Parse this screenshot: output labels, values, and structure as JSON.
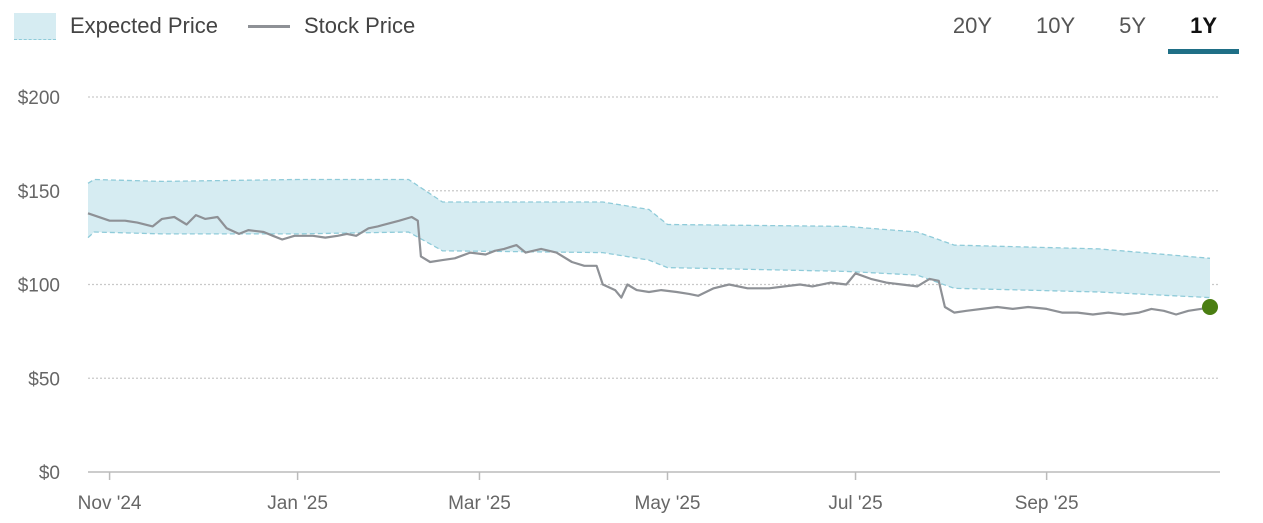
{
  "legend": {
    "expected_label": "Expected Price",
    "stock_label": "Stock Price"
  },
  "tabs": [
    {
      "label": "20Y",
      "active": false
    },
    {
      "label": "10Y",
      "active": false
    },
    {
      "label": "5Y",
      "active": false
    },
    {
      "label": "1Y",
      "active": true
    }
  ],
  "colors": {
    "band_fill": "#d6ecf2",
    "band_edge": "#8fcbd9",
    "stock_line": "#8e9196",
    "last_point": "#4a7e12",
    "active_tab": "#1f6f86"
  },
  "chart_data": {
    "type": "line",
    "y_ticks": [
      "$0",
      "$50",
      "$100",
      "$150",
      "$200"
    ],
    "ylim": [
      0,
      200
    ],
    "grid": true,
    "x_ticks": [
      {
        "label": "Nov '24",
        "date": "2024-11-01"
      },
      {
        "label": "Jan '25",
        "date": "2025-01-01"
      },
      {
        "label": "Mar '25",
        "date": "2025-03-01"
      },
      {
        "label": "May '25",
        "date": "2025-05-01"
      },
      {
        "label": "Jul '25",
        "date": "2025-07-01"
      },
      {
        "label": "Sep '25",
        "date": "2025-09-01"
      }
    ],
    "xlim": [
      "2024-10-25",
      "2025-10-24"
    ],
    "series": [
      {
        "name": "Stock Price",
        "points": [
          [
            "2024-10-25",
            138
          ],
          [
            "2024-11-01",
            134
          ],
          [
            "2024-11-06",
            134
          ],
          [
            "2024-11-10",
            133
          ],
          [
            "2024-11-15",
            131
          ],
          [
            "2024-11-18",
            135
          ],
          [
            "2024-11-22",
            136
          ],
          [
            "2024-11-26",
            132
          ],
          [
            "2024-11-29",
            137
          ],
          [
            "2024-12-02",
            135
          ],
          [
            "2024-12-06",
            136
          ],
          [
            "2024-12-09",
            130
          ],
          [
            "2024-12-13",
            127
          ],
          [
            "2024-12-16",
            129
          ],
          [
            "2024-12-21",
            128
          ],
          [
            "2024-12-24",
            126
          ],
          [
            "2024-12-27",
            124
          ],
          [
            "2024-12-31",
            126
          ],
          [
            "2025-01-06",
            126
          ],
          [
            "2025-01-10",
            125
          ],
          [
            "2025-01-14",
            126
          ],
          [
            "2025-01-17",
            127
          ],
          [
            "2025-01-20",
            126
          ],
          [
            "2025-01-24",
            130
          ],
          [
            "2025-01-27",
            131
          ],
          [
            "2025-02-03",
            134
          ],
          [
            "2025-02-07",
            136
          ],
          [
            "2025-02-09",
            134
          ],
          [
            "2025-02-10",
            115
          ],
          [
            "2025-02-13",
            112
          ],
          [
            "2025-02-17",
            113
          ],
          [
            "2025-02-21",
            114
          ],
          [
            "2025-02-26",
            117
          ],
          [
            "2025-03-03",
            116
          ],
          [
            "2025-03-06",
            118
          ],
          [
            "2025-03-09",
            119
          ],
          [
            "2025-03-13",
            121
          ],
          [
            "2025-03-16",
            117
          ],
          [
            "2025-03-21",
            119
          ],
          [
            "2025-03-26",
            117
          ],
          [
            "2025-03-31",
            112
          ],
          [
            "2025-04-04",
            110
          ],
          [
            "2025-04-08",
            110
          ],
          [
            "2025-04-10",
            100
          ],
          [
            "2025-04-14",
            97
          ],
          [
            "2025-04-16",
            93
          ],
          [
            "2025-04-18",
            100
          ],
          [
            "2025-04-21",
            97
          ],
          [
            "2025-04-25",
            96
          ],
          [
            "2025-04-29",
            97
          ],
          [
            "2025-05-04",
            96
          ],
          [
            "2025-05-08",
            95
          ],
          [
            "2025-05-11",
            94
          ],
          [
            "2025-05-16",
            98
          ],
          [
            "2025-05-21",
            100
          ],
          [
            "2025-05-27",
            98
          ],
          [
            "2025-06-03",
            98
          ],
          [
            "2025-06-08",
            99
          ],
          [
            "2025-06-13",
            100
          ],
          [
            "2025-06-17",
            99
          ],
          [
            "2025-06-23",
            101
          ],
          [
            "2025-06-28",
            100
          ],
          [
            "2025-07-01",
            106
          ],
          [
            "2025-07-06",
            103
          ],
          [
            "2025-07-11",
            101
          ],
          [
            "2025-07-16",
            100
          ],
          [
            "2025-07-21",
            99
          ],
          [
            "2025-07-25",
            103
          ],
          [
            "2025-07-28",
            102
          ],
          [
            "2025-07-30",
            88
          ],
          [
            "2025-08-02",
            85
          ],
          [
            "2025-08-06",
            86
          ],
          [
            "2025-08-11",
            87
          ],
          [
            "2025-08-16",
            88
          ],
          [
            "2025-08-21",
            87
          ],
          [
            "2025-08-26",
            88
          ],
          [
            "2025-09-01",
            87
          ],
          [
            "2025-09-06",
            85
          ],
          [
            "2025-09-11",
            85
          ],
          [
            "2025-09-16",
            84
          ],
          [
            "2025-09-21",
            85
          ],
          [
            "2025-09-26",
            84
          ],
          [
            "2025-10-01",
            85
          ],
          [
            "2025-10-05",
            87
          ],
          [
            "2025-10-09",
            86
          ],
          [
            "2025-10-13",
            84
          ],
          [
            "2025-10-17",
            86
          ],
          [
            "2025-10-21",
            87
          ],
          [
            "2025-10-24",
            88
          ]
        ]
      },
      {
        "name": "Expected Price",
        "upper": [
          [
            "2024-10-25",
            154
          ],
          [
            "2024-10-27",
            156
          ],
          [
            "2024-11-18",
            155
          ],
          [
            "2025-01-01",
            156
          ],
          [
            "2025-02-06",
            156
          ],
          [
            "2025-02-17",
            144
          ],
          [
            "2025-04-10",
            144
          ],
          [
            "2025-04-25",
            140
          ],
          [
            "2025-05-01",
            132
          ],
          [
            "2025-06-28",
            131
          ],
          [
            "2025-07-21",
            128
          ],
          [
            "2025-08-02",
            121
          ],
          [
            "2025-09-18",
            119
          ],
          [
            "2025-10-24",
            114
          ]
        ],
        "lower": [
          [
            "2024-10-25",
            125
          ],
          [
            "2024-10-27",
            128
          ],
          [
            "2024-11-18",
            127
          ],
          [
            "2025-01-01",
            127
          ],
          [
            "2025-02-06",
            128
          ],
          [
            "2025-02-17",
            118
          ],
          [
            "2025-04-10",
            117
          ],
          [
            "2025-04-25",
            113
          ],
          [
            "2025-05-01",
            109
          ],
          [
            "2025-06-28",
            107
          ],
          [
            "2025-07-21",
            105
          ],
          [
            "2025-08-02",
            98
          ],
          [
            "2025-09-18",
            96
          ],
          [
            "2025-10-24",
            93
          ]
        ]
      }
    ],
    "last_point": {
      "date": "2025-10-24",
      "value": 88
    }
  }
}
